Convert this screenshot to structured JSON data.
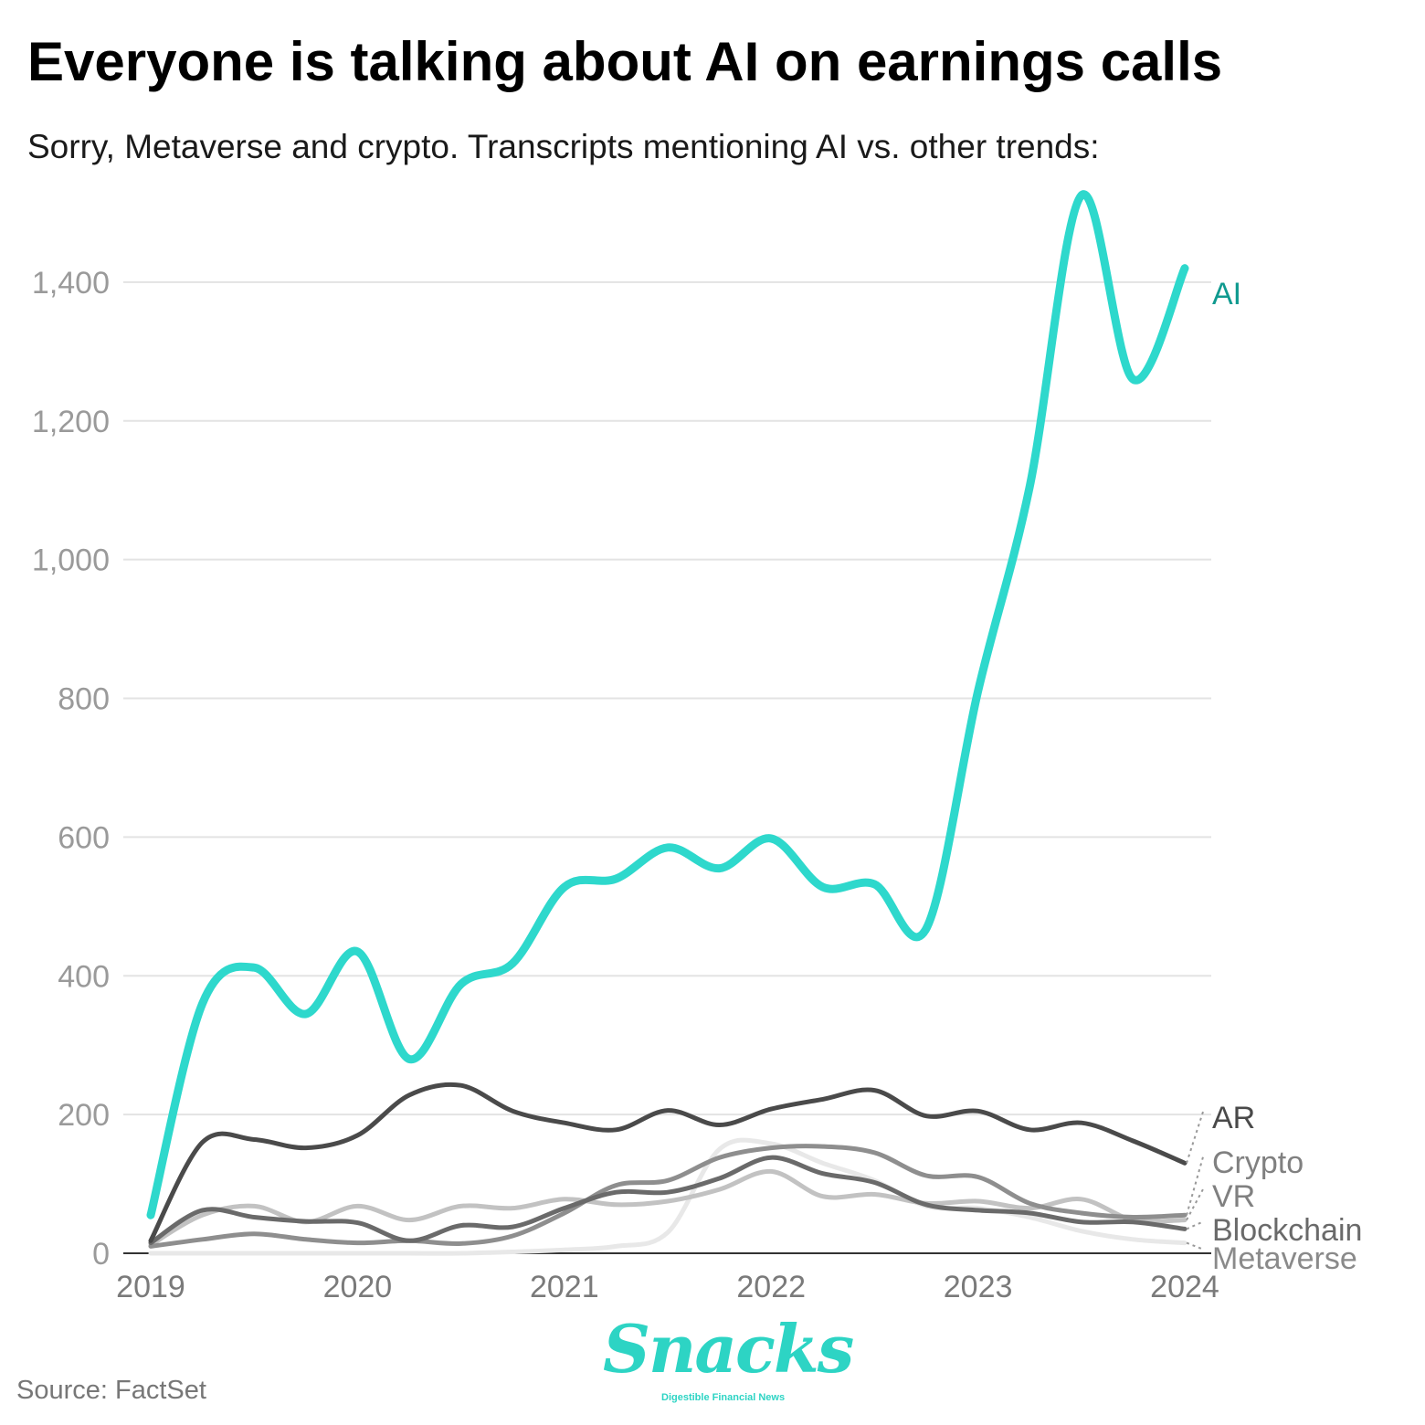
{
  "header": {
    "title": "Everyone is talking about AI on earnings calls",
    "subtitle": "Sorry, Metaverse and crypto. Transcripts mentioning AI vs. other trends:"
  },
  "footer": {
    "source": "Source: FactSet",
    "logo_text": "Snacks",
    "logo_tagline": "Digestible Financial News"
  },
  "chart_data": {
    "type": "line",
    "title": "Everyone is talking about AI on earnings calls",
    "subtitle": "Sorry, Metaverse and crypto. Transcripts mentioning AI vs. other trends:",
    "xlabel": "",
    "ylabel": "",
    "xlim": [
      2019,
      2024
    ],
    "ylim": [
      0,
      1500
    ],
    "x_ticks": [
      "2019",
      "2020",
      "2021",
      "2022",
      "2023",
      "2024"
    ],
    "y_ticks": [
      0,
      200,
      400,
      600,
      800,
      1000,
      1200,
      1400
    ],
    "y_tick_labels": [
      "0",
      "200",
      "400",
      "600",
      "800",
      "1,000",
      "1,200",
      "1,400"
    ],
    "grid": true,
    "legend": "direct labels at right end of lines",
    "x": [
      2019.0,
      2019.25,
      2019.5,
      2019.75,
      2020.0,
      2020.25,
      2020.5,
      2020.75,
      2021.0,
      2021.25,
      2021.5,
      2021.75,
      2022.0,
      2022.25,
      2022.5,
      2022.75,
      2023.0,
      2023.25,
      2023.5,
      2023.75,
      2024.0
    ],
    "series": [
      {
        "name": "AI",
        "color": "#2ed8cc",
        "values": [
          55,
          360,
          412,
          345,
          435,
          280,
          388,
          418,
          528,
          540,
          585,
          555,
          598,
          528,
          532,
          468,
          810,
          1105,
          1525,
          1260,
          1420
        ]
      },
      {
        "name": "AR",
        "color": "#4a4a4a",
        "values": [
          18,
          160,
          164,
          152,
          170,
          228,
          242,
          205,
          188,
          178,
          206,
          185,
          208,
          222,
          235,
          198,
          205,
          178,
          188,
          162,
          130
        ]
      },
      {
        "name": "Crypto",
        "color": "#8e8e8e",
        "values": [
          10,
          20,
          28,
          20,
          15,
          18,
          14,
          25,
          58,
          98,
          105,
          138,
          152,
          154,
          145,
          112,
          110,
          72,
          58,
          52,
          55
        ]
      },
      {
        "name": "VR",
        "color": "#c2c2c2",
        "values": [
          12,
          55,
          68,
          45,
          68,
          48,
          68,
          65,
          78,
          70,
          75,
          92,
          118,
          82,
          85,
          72,
          75,
          65,
          78,
          48,
          48
        ]
      },
      {
        "name": "Blockchain",
        "color": "#6a6a6a",
        "values": [
          15,
          62,
          52,
          46,
          44,
          18,
          40,
          38,
          65,
          88,
          88,
          108,
          138,
          115,
          102,
          70,
          62,
          58,
          45,
          45,
          35
        ]
      },
      {
        "name": "Metaverse",
        "color": "#e8e8e8",
        "values": [
          0,
          0,
          0,
          0,
          0,
          0,
          0,
          2,
          5,
          10,
          30,
          150,
          158,
          130,
          105,
          68,
          65,
          52,
          32,
          20,
          15
        ]
      }
    ]
  }
}
